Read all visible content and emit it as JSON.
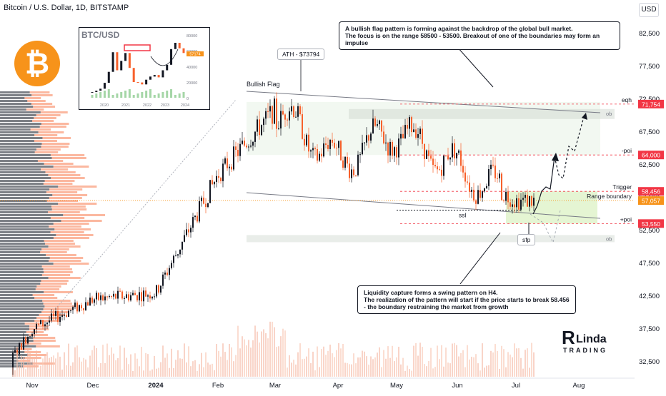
{
  "header": {
    "title": "Bitcoin / U.S. Dollar, 1D, BITSTAMP",
    "currency_button": "USD"
  },
  "chart_data": {
    "type": "candlestick",
    "symbol": "Bitcoin / U.S. Dollar, 1D, BITSTAMP",
    "ylim": [
      30000,
      87000
    ],
    "y_ticks": [
      "82,500",
      "77,500",
      "72,500",
      "67,500",
      "62,500",
      "57,500",
      "52,500",
      "47,500",
      "42,500",
      "37,500",
      "32,500"
    ],
    "x_ticks": [
      "Nov",
      "Dec",
      "2024",
      "Feb",
      "Mar",
      "Apr",
      "May",
      "Jun",
      "Jul",
      "Aug"
    ],
    "series": [
      {
        "date": "2023-11",
        "close": 37500
      },
      {
        "date": "2023-12",
        "close": 42000
      },
      {
        "date": "2024-01",
        "close": 43000
      },
      {
        "date": "2024-02",
        "close": 61000
      },
      {
        "date": "2024-03",
        "close": 71000
      },
      {
        "date": "2024-04",
        "close": 63000
      },
      {
        "date": "2024-05",
        "close": 67500
      },
      {
        "date": "2024-06",
        "close": 62000
      },
      {
        "date": "2024-07",
        "close": 57057
      }
    ],
    "levels": [
      {
        "label": "eqh",
        "value": 71754,
        "price_label": "71,754",
        "color": "#f23645"
      },
      {
        "label": "-poi",
        "value": 64000,
        "price_label": "64,000",
        "color": "#f23645"
      },
      {
        "label": "Trigger",
        "value": 58456,
        "price_label": "58,456",
        "color": "#f23645"
      },
      {
        "label": "Range boundary",
        "value": 57057,
        "price_label": "57,057",
        "color": "#f7931a"
      },
      {
        "label": "+poi",
        "value": 53550,
        "price_label": "53,550",
        "color": "#f23645"
      }
    ],
    "annotations": {
      "flag_label": "Bullish Flag",
      "ath_label": "ATH - $73794",
      "ssl_label": "ssl",
      "sfp_label": "sfp",
      "ob_label": "ob",
      "top_note": "A bullish flag pattern is forming against the backdrop of the global bull market.\nThe focus is on the range 58500 - 53500. Breakout of one of the boundaries may form an impulse",
      "bottom_note": "Liquidity capture forms a swing pattern on H4.\nThe realization of the pattern will start if the price starts to break 58.456\n- the boundary restraining the market from growth"
    },
    "inset": {
      "title": "BTC/USD",
      "y_ticks": [
        "80000",
        "60000",
        "40000",
        "20000",
        "0"
      ],
      "x_ticks": [
        "2020",
        "2021",
        "2022",
        "2023",
        "2024"
      ],
      "price_label": "57174",
      "closes": [
        7200,
        9000,
        11500,
        19000,
        33000,
        58000,
        35000,
        47000,
        57000,
        38000,
        20000,
        19500,
        17000,
        23000,
        27000,
        29000,
        26000,
        35000,
        42000,
        62000,
        70000,
        63000,
        57000
      ]
    }
  },
  "brand": {
    "name": "Linda Trading",
    "line1": "RLinda",
    "line2": "TRADING"
  },
  "colors": {
    "up": "#131722",
    "down": "#f7612c",
    "accent": "#f7931a",
    "red": "#f23645"
  }
}
